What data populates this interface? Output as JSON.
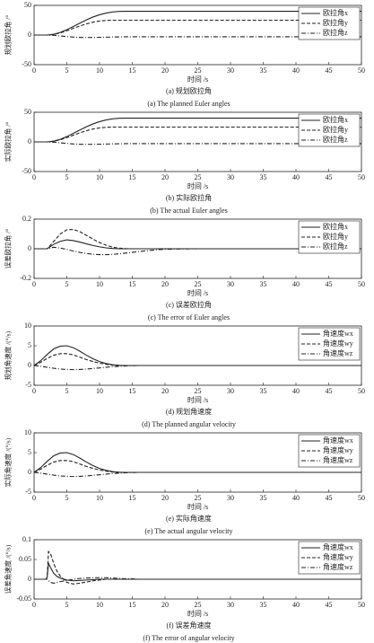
{
  "chart_data": [
    {
      "type": "line",
      "caption": "(a) 规划欧拉角",
      "caption_en": "(a) The planned Euler angles",
      "xlabel": "时间 /s",
      "ylabel": "规划欧拉角 /°",
      "x": [
        0,
        1,
        2,
        3,
        4,
        5,
        6,
        7,
        8,
        9,
        10,
        11,
        12,
        13,
        14,
        15,
        16,
        17,
        18,
        19,
        20,
        25,
        30,
        35,
        40,
        45,
        50
      ],
      "xlim": [
        0,
        50
      ],
      "xticks": [
        0,
        5,
        10,
        15,
        20,
        25,
        30,
        35,
        40,
        45,
        50
      ],
      "ylim": [
        -50,
        50
      ],
      "yticks": [
        -50,
        0,
        50
      ],
      "legend": "upper right",
      "series": [
        {
          "name": "欧拉角x",
          "color": "#222222",
          "dash": "solid",
          "values": [
            0,
            0,
            0,
            1.2,
            4.4,
            9,
            14.4,
            20,
            25.5,
            30.4,
            34.2,
            37,
            38.9,
            39.8,
            40,
            40,
            40,
            40,
            40,
            40,
            40,
            40,
            40,
            40,
            40,
            40,
            40
          ]
        },
        {
          "name": "欧拉角y",
          "color": "#222222",
          "dash": "dashed",
          "values": [
            0,
            0,
            0,
            1,
            3.5,
            7.2,
            11.3,
            15.3,
            18.9,
            21.7,
            23.6,
            24.6,
            25,
            25,
            25,
            25,
            25,
            25,
            25,
            25,
            25,
            25,
            25,
            25,
            25,
            25,
            25
          ]
        },
        {
          "name": "欧拉角z",
          "color": "#222222",
          "dash": "dashdot",
          "values": [
            0,
            0,
            0,
            -0.5,
            -1.5,
            -2.6,
            -3.5,
            -4,
            -4.2,
            -4.1,
            -3.9,
            -3.6,
            -3.3,
            -3.1,
            -3,
            -3,
            -3,
            -3,
            -3,
            -3,
            -3,
            -3,
            -3,
            -3,
            -3,
            -3,
            -3
          ]
        }
      ]
    },
    {
      "type": "line",
      "caption": "(b) 实际欧拉角",
      "caption_en": "(b) The actual Euler angles",
      "xlabel": "时间 /s",
      "ylabel": "实际欧拉角 /°",
      "x": [
        0,
        1,
        2,
        3,
        4,
        5,
        6,
        7,
        8,
        9,
        10,
        11,
        12,
        13,
        14,
        15,
        16,
        17,
        18,
        19,
        20,
        25,
        30,
        35,
        40,
        45,
        50
      ],
      "xlim": [
        0,
        50
      ],
      "xticks": [
        0,
        5,
        10,
        15,
        20,
        25,
        30,
        35,
        40,
        45,
        50
      ],
      "ylim": [
        -50,
        50
      ],
      "yticks": [
        -50,
        0,
        50
      ],
      "legend": "upper right",
      "series": [
        {
          "name": "欧拉角x",
          "color": "#222222",
          "dash": "solid",
          "values": [
            0,
            0,
            0,
            1.2,
            4.4,
            9,
            14.4,
            20,
            25.5,
            30.4,
            34.2,
            37,
            38.9,
            39.8,
            40,
            40,
            40,
            40,
            40,
            40,
            40,
            40,
            40,
            40,
            40,
            40,
            40
          ]
        },
        {
          "name": "欧拉角y",
          "color": "#222222",
          "dash": "dashed",
          "values": [
            0,
            0,
            0,
            1,
            3.5,
            7.2,
            11.3,
            15.3,
            18.9,
            21.7,
            23.6,
            24.6,
            25,
            25,
            25,
            25,
            25,
            25,
            25,
            25,
            25,
            25,
            25,
            25,
            25,
            25,
            25
          ]
        },
        {
          "name": "欧拉角z",
          "color": "#222222",
          "dash": "dashdot",
          "values": [
            0,
            0,
            0,
            -0.5,
            -1.5,
            -2.6,
            -3.5,
            -4,
            -4.2,
            -4.1,
            -3.9,
            -3.6,
            -3.3,
            -3.1,
            -3,
            -3,
            -3,
            -3,
            -3,
            -3,
            -3,
            -3,
            -3,
            -3,
            -3,
            -3,
            -3
          ]
        }
      ]
    },
    {
      "type": "line",
      "caption": "(c) 误差欧拉角",
      "caption_en": "(c) The error of Euler angles",
      "xlabel": "时间 /s",
      "ylabel": "误差欧拉角 /°",
      "x": [
        0,
        1,
        2,
        3,
        4,
        5,
        6,
        7,
        8,
        9,
        10,
        11,
        12,
        13,
        14,
        15,
        16,
        17,
        18,
        19,
        20,
        25,
        30,
        35,
        40,
        45,
        50
      ],
      "xlim": [
        0,
        50
      ],
      "xticks": [
        0,
        5,
        10,
        15,
        20,
        25,
        30,
        35,
        40,
        45,
        50
      ],
      "ylim": [
        -0.2,
        0.2
      ],
      "yticks": [
        -0.2,
        0,
        0.2
      ],
      "legend": "upper right",
      "series": [
        {
          "name": "欧拉角x",
          "color": "#222222",
          "dash": "solid",
          "values": [
            0,
            0,
            0,
            0.03,
            0.05,
            0.06,
            0.055,
            0.045,
            0.033,
            0.022,
            0.013,
            0.006,
            0.002,
            0,
            0,
            0,
            0,
            0,
            0,
            0,
            0,
            0,
            0,
            0,
            0,
            0,
            0
          ]
        },
        {
          "name": "欧拉角y",
          "color": "#222222",
          "dash": "dashed",
          "values": [
            0,
            0,
            0,
            0.05,
            0.1,
            0.128,
            0.13,
            0.115,
            0.09,
            0.065,
            0.042,
            0.024,
            0.011,
            0.004,
            0.001,
            0,
            0,
            0,
            0,
            0,
            0,
            0,
            0,
            0,
            0,
            0,
            0
          ]
        },
        {
          "name": "欧拉角z",
          "color": "#222222",
          "dash": "dashdot",
          "values": [
            0,
            0,
            0,
            0.01,
            0.005,
            -0.005,
            -0.015,
            -0.025,
            -0.032,
            -0.037,
            -0.04,
            -0.04,
            -0.038,
            -0.034,
            -0.029,
            -0.024,
            -0.019,
            -0.014,
            -0.01,
            -0.006,
            -0.003,
            0,
            0,
            0,
            0,
            0,
            0
          ]
        }
      ]
    },
    {
      "type": "line",
      "caption": "(d) 规划角速度",
      "caption_en": "(d) The planned angular velocity",
      "xlabel": "时间 /s",
      "ylabel": "规划角速度 /(°/s)",
      "x": [
        0,
        1,
        2,
        3,
        4,
        5,
        6,
        7,
        8,
        9,
        10,
        11,
        12,
        13,
        14,
        15,
        16,
        17,
        18,
        19,
        20,
        25,
        30,
        35,
        40,
        45,
        50
      ],
      "xlim": [
        0,
        50
      ],
      "xticks": [
        0,
        5,
        10,
        15,
        20,
        25,
        30,
        35,
        40,
        45,
        50
      ],
      "ylim": [
        -5,
        10
      ],
      "yticks": [
        -5,
        0,
        5,
        10
      ],
      "legend": "upper right",
      "series": [
        {
          "name": "角速度wx",
          "color": "#222222",
          "dash": "solid",
          "values": [
            0,
            1.2,
            2.8,
            4.2,
            4.9,
            5,
            4.5,
            3.6,
            2.6,
            1.7,
            1,
            0.5,
            0.2,
            0.05,
            0,
            0,
            0,
            0,
            0,
            0,
            0,
            0,
            0,
            0,
            0,
            0,
            0
          ]
        },
        {
          "name": "角速度wy",
          "color": "#222222",
          "dash": "dashed",
          "values": [
            0,
            0.8,
            1.8,
            2.6,
            3,
            3,
            2.7,
            2.1,
            1.5,
            1,
            0.6,
            0.3,
            0.1,
            0,
            0,
            0,
            0,
            0,
            0,
            0,
            0,
            0,
            0,
            0,
            0,
            0,
            0
          ]
        },
        {
          "name": "角速度wz",
          "color": "#222222",
          "dash": "dashdot",
          "values": [
            0,
            -0.2,
            -0.45,
            -0.7,
            -0.9,
            -1,
            -1.05,
            -1,
            -0.9,
            -0.75,
            -0.6,
            -0.45,
            -0.3,
            -0.2,
            -0.1,
            -0.05,
            0,
            0,
            0,
            0,
            0,
            0,
            0,
            0,
            0,
            0,
            0
          ]
        }
      ]
    },
    {
      "type": "line",
      "caption": "(e) 实际角速度",
      "caption_en": "(e) The actual angular velocity",
      "xlabel": "时间 /s",
      "ylabel": "实际角速度 /(°/s)",
      "x": [
        0,
        1,
        2,
        3,
        4,
        5,
        6,
        7,
        8,
        9,
        10,
        11,
        12,
        13,
        14,
        15,
        16,
        17,
        18,
        19,
        20,
        25,
        30,
        35,
        40,
        45,
        50
      ],
      "xlim": [
        0,
        50
      ],
      "xticks": [
        0,
        5,
        10,
        15,
        20,
        25,
        30,
        35,
        40,
        45,
        50
      ],
      "ylim": [
        -5,
        10
      ],
      "yticks": [
        -5,
        0,
        5,
        10
      ],
      "legend": "upper right",
      "series": [
        {
          "name": "角速度wx",
          "color": "#222222",
          "dash": "solid",
          "values": [
            0,
            1.2,
            2.8,
            4.2,
            4.9,
            5,
            4.5,
            3.6,
            2.6,
            1.7,
            1,
            0.5,
            0.2,
            0.05,
            0,
            0,
            0,
            0,
            0,
            0,
            0,
            0,
            0,
            0,
            0,
            0,
            0
          ]
        },
        {
          "name": "角速度wy",
          "color": "#222222",
          "dash": "dashed",
          "values": [
            0,
            0.8,
            1.8,
            2.6,
            3,
            3,
            2.7,
            2.1,
            1.5,
            1,
            0.6,
            0.3,
            0.1,
            0,
            0,
            0,
            0,
            0,
            0,
            0,
            0,
            0,
            0,
            0,
            0,
            0,
            0
          ]
        },
        {
          "name": "角速度wz",
          "color": "#222222",
          "dash": "dashdot",
          "values": [
            0,
            -0.2,
            -0.45,
            -0.7,
            -0.9,
            -1,
            -1.05,
            -1,
            -0.9,
            -0.75,
            -0.6,
            -0.45,
            -0.3,
            -0.2,
            -0.1,
            -0.05,
            0,
            0,
            0,
            0,
            0,
            0,
            0,
            0,
            0,
            0,
            0
          ]
        }
      ]
    },
    {
      "type": "line",
      "caption": "(f) 误差角速度",
      "caption_en": "(f) The error of angular velocity",
      "xlabel": "时间 /s",
      "ylabel": "误差角速度 /(°/s)",
      "x": [
        0,
        1,
        1.8,
        2,
        2.2,
        2.5,
        3,
        3.5,
        4,
        5,
        6,
        7,
        8,
        9,
        10,
        11,
        12,
        13,
        14,
        15,
        16,
        18,
        20,
        25,
        30,
        35,
        40,
        45,
        50
      ],
      "xlim": [
        0,
        50
      ],
      "xticks": [
        0,
        5,
        10,
        15,
        20,
        25,
        30,
        35,
        40,
        45,
        50
      ],
      "ylim": [
        -0.05,
        0.1
      ],
      "yticks": [
        -0.05,
        0,
        0.05,
        0.1
      ],
      "legend": "upper right",
      "series": [
        {
          "name": "角速度wx",
          "color": "#222222",
          "dash": "solid",
          "values": [
            0,
            0,
            0,
            0.005,
            0.04,
            0.03,
            0.015,
            0.007,
            0.003,
            -0.002,
            -0.004,
            -0.003,
            -0.002,
            -0.001,
            0,
            0,
            0,
            0,
            0,
            0,
            0,
            0,
            0,
            0,
            0,
            0,
            0,
            0,
            0
          ]
        },
        {
          "name": "角速度wy",
          "color": "#222222",
          "dash": "dashed",
          "values": [
            0,
            0,
            0,
            0.005,
            0.07,
            0.065,
            0.04,
            0.02,
            0.008,
            -0.008,
            -0.012,
            -0.01,
            -0.007,
            -0.004,
            -0.002,
            0,
            0,
            0,
            0,
            0,
            0,
            0,
            0,
            0,
            0,
            0,
            0,
            0,
            0
          ]
        },
        {
          "name": "角速度wz",
          "color": "#222222",
          "dash": "dashdot",
          "values": [
            0,
            0,
            0,
            0,
            -0.003,
            -0.008,
            -0.01,
            -0.008,
            -0.006,
            -0.003,
            0,
            0.002,
            0.003,
            0.004,
            0.004,
            0.004,
            0.003,
            0.002,
            0.001,
            0.001,
            0,
            0,
            0,
            0,
            0,
            0,
            0,
            0,
            0
          ]
        }
      ]
    }
  ]
}
